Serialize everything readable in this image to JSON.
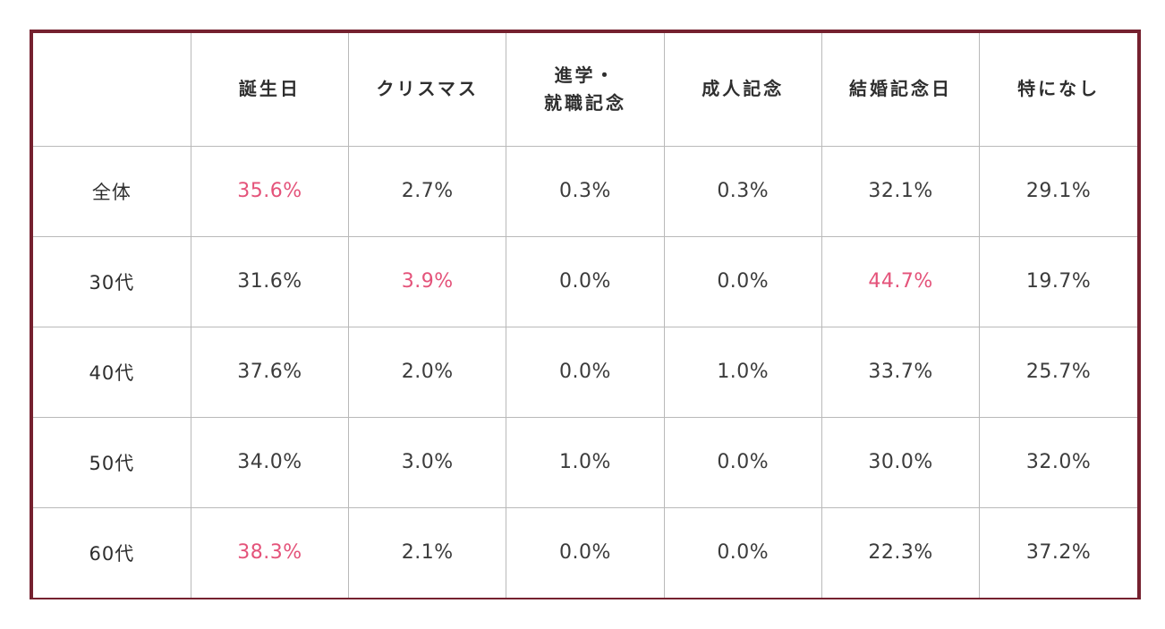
{
  "colors": {
    "frame_maroon": "#75212f",
    "accent_pink": "#e4537a",
    "gridline_gray": "#b9b9b9",
    "text_black": "#2e2e2e"
  },
  "table": {
    "columns": [
      "",
      "誕生日",
      "クリスマス",
      "進学・\n就職記念",
      "成人記念",
      "結婚記念日",
      "特になし"
    ],
    "rows": [
      {
        "label": "全体",
        "values": [
          "35.6%",
          "2.7%",
          "0.3%",
          "0.3%",
          "32.1%",
          "29.1%"
        ],
        "highlight_cols": [
          0
        ]
      },
      {
        "label": "30代",
        "values": [
          "31.6%",
          "3.9%",
          "0.0%",
          "0.0%",
          "44.7%",
          "19.7%"
        ],
        "highlight_cols": [
          1,
          4
        ]
      },
      {
        "label": "40代",
        "values": [
          "37.6%",
          "2.0%",
          "0.0%",
          "1.0%",
          "33.7%",
          "25.7%"
        ],
        "highlight_cols": []
      },
      {
        "label": "50代",
        "values": [
          "34.0%",
          "3.0%",
          "1.0%",
          "0.0%",
          "30.0%",
          "32.0%"
        ],
        "highlight_cols": []
      },
      {
        "label": "60代",
        "values": [
          "38.3%",
          "2.1%",
          "0.0%",
          "0.0%",
          "22.3%",
          "37.2%"
        ],
        "highlight_cols": [
          0
        ]
      }
    ]
  },
  "chart_data": {
    "type": "table",
    "columns": [
      "誕生日",
      "クリスマス",
      "進学・就職記念",
      "成人記念",
      "結婚記念日",
      "特になし"
    ],
    "row_labels": [
      "全体",
      "30代",
      "40代",
      "50代",
      "60代"
    ],
    "values_percent": [
      [
        35.6,
        2.7,
        0.3,
        0.3,
        32.1,
        29.1
      ],
      [
        31.6,
        3.9,
        0.0,
        0.0,
        44.7,
        19.7
      ],
      [
        37.6,
        2.0,
        0.0,
        1.0,
        33.7,
        25.7
      ],
      [
        34.0,
        3.0,
        1.0,
        0.0,
        30.0,
        32.0
      ],
      [
        38.3,
        2.1,
        0.0,
        0.0,
        22.3,
        37.2
      ]
    ],
    "highlighted_cells": [
      [
        "全体",
        "誕生日"
      ],
      [
        "30代",
        "クリスマス"
      ],
      [
        "30代",
        "結婚記念日"
      ],
      [
        "60代",
        "誕生日"
      ]
    ],
    "legend_position": "none",
    "grid": true
  }
}
